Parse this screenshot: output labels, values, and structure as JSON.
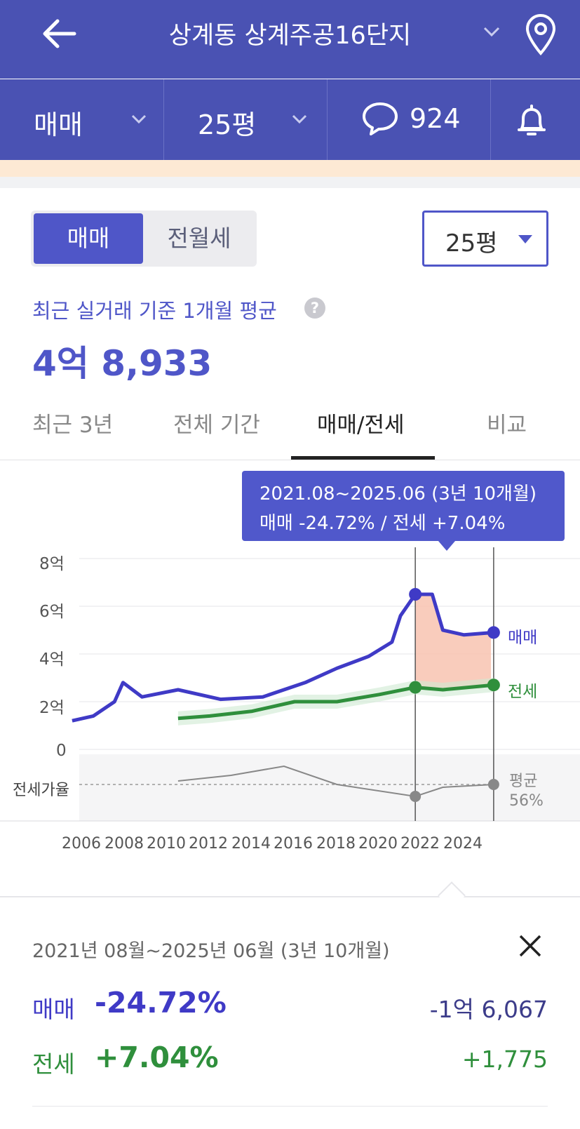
{
  "header": {
    "title": "상계동 상계주공16단지",
    "icons": [
      "back-arrow-icon",
      "chevron-down-icon",
      "location-pin-icon"
    ]
  },
  "subbar": {
    "trade_type": "매매",
    "size": "25평",
    "comment_count": "924",
    "icons": [
      "chevron-down-icon",
      "speech-bubble-icon",
      "bell-icon"
    ]
  },
  "controls": {
    "segment_on": "매매",
    "segment_off": "전월세",
    "size_select": "25평"
  },
  "summary": {
    "label": "최근 실거래 기준 1개월 평균",
    "help": "?",
    "value": "4억 8,933"
  },
  "tabs": [
    {
      "label": "최근 3년",
      "active": false
    },
    {
      "label": "전체 기간",
      "active": false
    },
    {
      "label": "매매/전세",
      "active": true
    },
    {
      "label": "비교",
      "active": false
    }
  ],
  "tooltip": {
    "line1": "2021.08~2025.06 (3년 10개월)",
    "line2": "매매 -24.72%  /  전세 +7.04%"
  },
  "chart_data": {
    "type": "line",
    "y_ticks": [
      "8억",
      "6억",
      "4억",
      "2억",
      "0"
    ],
    "ylim": [
      0,
      8
    ],
    "x_ticks": [
      "2006",
      "2008",
      "2010",
      "2012",
      "2014",
      "2016",
      "2018",
      "2020",
      "2022",
      "2024"
    ],
    "series": [
      {
        "name": "매매",
        "color": "#3f3ac6",
        "x": [
          2005.5,
          2006.5,
          2007.5,
          2007.9,
          2008.8,
          2010.5,
          2012.5,
          2014.5,
          2016.5,
          2018.0,
          2019.5,
          2020.6,
          2021.0,
          2021.7,
          2022.5,
          2023.0,
          2024.0,
          2025.4
        ],
        "values": [
          1.2,
          1.4,
          2.0,
          2.8,
          2.2,
          2.5,
          2.1,
          2.2,
          2.8,
          3.4,
          3.9,
          4.5,
          5.6,
          6.5,
          6.5,
          5.0,
          4.8,
          4.9
        ]
      },
      {
        "name": "전세",
        "color": "#2f8f3c",
        "x": [
          2010.5,
          2012.0,
          2014.0,
          2016.0,
          2018.0,
          2020.0,
          2021.7,
          2023.0,
          2025.4
        ],
        "values": [
          1.3,
          1.4,
          1.6,
          2.0,
          2.0,
          2.3,
          2.6,
          2.5,
          2.7
        ]
      }
    ],
    "ratio_label": "전세가율",
    "ratio_avg_label": "평균",
    "ratio_avg_value": "56%",
    "highlight_range": [
      "2021.08",
      "2025.06"
    ]
  },
  "detail": {
    "period": "2021년 08월~2025년 06월 (3년 10개월)",
    "rows": [
      {
        "name": "매매",
        "pct": "-24.72%",
        "amount": "-1억 6,067",
        "color": "#3f3ac6",
        "amount_color": "#3c3c8a"
      },
      {
        "name": "전세",
        "pct": "+7.04%",
        "amount": "+1,775",
        "color": "#2f8f3c",
        "amount_color": "#2f8f3c"
      }
    ]
  },
  "colors": {
    "brand": "#4a52b3",
    "accent": "#4f56c8",
    "sale": "#3f3ac6",
    "jeonse": "#2f8f3c",
    "highlight_fill": "#f8c3b0"
  }
}
